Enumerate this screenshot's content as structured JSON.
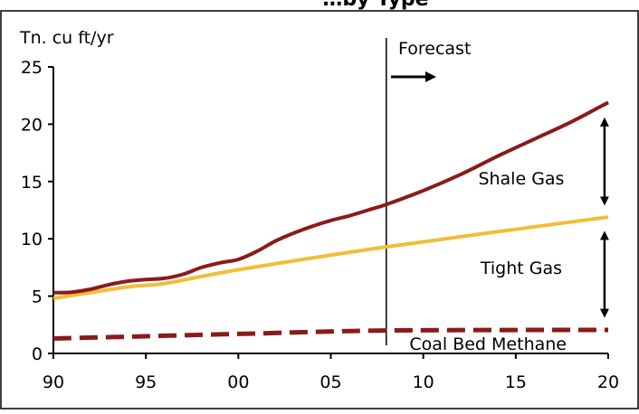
{
  "chart_data": {
    "type": "line",
    "title": "…by Type",
    "ylabel": "Tn. cu ft/yr",
    "xlabel": "",
    "x_ticks": [
      1990,
      1995,
      2000,
      2005,
      2010,
      2015,
      2020
    ],
    "x_tick_labels": [
      "90",
      "95",
      "00",
      "05",
      "10",
      "15",
      "20"
    ],
    "xlim": [
      1990,
      2020
    ],
    "y_ticks": [
      0,
      5,
      10,
      15,
      20,
      25
    ],
    "ylim": [
      0,
      25
    ],
    "forecast_year": 2008,
    "forecast_label": "Forecast",
    "grid": false,
    "colors": {
      "total": "#8b1a1a",
      "tight": "#f0bf38",
      "coal": "#8b1a1a"
    },
    "series": [
      {
        "key": "total",
        "style": "solid",
        "x": [
          1990,
          1991,
          1992,
          1993,
          1994,
          1995,
          1996,
          1997,
          1998,
          1999,
          2000,
          2001,
          2002,
          2003,
          2004,
          2005,
          2006,
          2007,
          2008,
          2010,
          2012,
          2014,
          2016,
          2018,
          2020
        ],
        "values": [
          5.3,
          5.35,
          5.6,
          6.0,
          6.3,
          6.45,
          6.55,
          6.9,
          7.5,
          7.9,
          8.2,
          8.9,
          9.8,
          10.5,
          11.1,
          11.6,
          12.0,
          12.5,
          13.0,
          14.2,
          15.6,
          17.2,
          18.7,
          20.2,
          21.9
        ]
      },
      {
        "key": "tight",
        "style": "solid",
        "x": [
          1990,
          1994,
          1996,
          2000,
          2008,
          2020
        ],
        "values": [
          4.8,
          5.8,
          6.1,
          7.3,
          9.3,
          11.9
        ]
      },
      {
        "key": "coal",
        "style": "dashed",
        "x": [
          1990,
          2000,
          2008,
          2020
        ],
        "values": [
          1.3,
          1.7,
          2.0,
          2.05
        ]
      }
    ],
    "annotations": [
      {
        "key": "shale",
        "text": "Shale Gas",
        "year": 2015.3,
        "value": 15.3
      },
      {
        "key": "tight",
        "text": "Tight Gas",
        "year": 2015.3,
        "value": 7.5
      },
      {
        "key": "coal",
        "text": "Coal Bed Methane",
        "year": 2013.5,
        "value": 0.85
      }
    ],
    "arrows": [
      {
        "key": "shale-range",
        "year": 2019.8,
        "from": 20.2,
        "to": 13.3
      },
      {
        "key": "tight-range",
        "year": 2019.8,
        "from": 10.3,
        "to": 3.5
      }
    ]
  }
}
